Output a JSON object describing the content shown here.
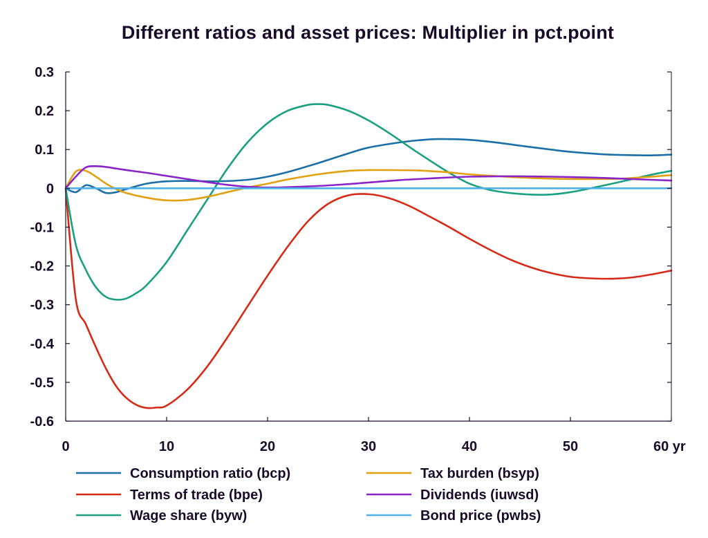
{
  "chart_data": {
    "type": "line",
    "title": "Different ratios and asset prices: Multiplier in pct.point",
    "xlabel": "",
    "ylabel": "",
    "x_unit": "yr",
    "xlim": [
      0,
      60
    ],
    "ylim": [
      -0.6,
      0.3
    ],
    "x_ticks": [
      0,
      10,
      20,
      30,
      40,
      50,
      60
    ],
    "x_tick_labels": [
      "0",
      "10",
      "20",
      "30",
      "40",
      "50",
      "60 yr"
    ],
    "y_ticks": [
      0.3,
      0.2,
      0.1,
      0,
      -0.1,
      -0.2,
      -0.3,
      -0.4,
      -0.5,
      -0.6
    ],
    "y_tick_labels": [
      "0.3",
      "0.2",
      "0.1",
      "0",
      "-0.1",
      "-0.2",
      "-0.3",
      "-0.4",
      "-0.5",
      "-0.6"
    ],
    "grid": false,
    "legend_position": "bottom",
    "series": [
      {
        "name": "Consumption ratio (bcp)",
        "color": "#1a6fa8",
        "x": [
          0,
          1,
          2,
          3,
          4,
          5,
          6,
          8,
          10,
          12,
          15,
          18,
          20,
          22,
          25,
          28,
          30,
          33,
          35,
          37,
          40,
          43,
          45,
          48,
          50,
          53,
          55,
          58,
          60
        ],
        "y": [
          0,
          -0.01,
          0.008,
          0.0,
          -0.012,
          -0.01,
          -0.002,
          0.012,
          0.018,
          0.019,
          0.018,
          0.022,
          0.03,
          0.042,
          0.065,
          0.09,
          0.105,
          0.118,
          0.124,
          0.127,
          0.125,
          0.117,
          0.11,
          0.1,
          0.094,
          0.088,
          0.086,
          0.085,
          0.087
        ]
      },
      {
        "name": "Terms of trade (bpe)",
        "color": "#d62a16",
        "x": [
          0,
          1,
          2,
          3,
          4,
          5,
          6,
          7,
          8,
          9,
          10,
          12,
          14,
          16,
          18,
          20,
          22,
          24,
          26,
          28,
          30,
          32,
          34,
          36,
          38,
          40,
          42,
          44,
          46,
          48,
          50,
          52,
          54,
          56,
          58,
          60
        ],
        "y": [
          0,
          -0.285,
          -0.35,
          -0.41,
          -0.465,
          -0.51,
          -0.54,
          -0.558,
          -0.566,
          -0.565,
          -0.56,
          -0.52,
          -0.46,
          -0.385,
          -0.305,
          -0.225,
          -0.15,
          -0.085,
          -0.04,
          -0.018,
          -0.015,
          -0.025,
          -0.045,
          -0.072,
          -0.1,
          -0.13,
          -0.158,
          -0.183,
          -0.203,
          -0.218,
          -0.228,
          -0.232,
          -0.233,
          -0.23,
          -0.222,
          -0.212
        ]
      },
      {
        "name": "Wage share (byw)",
        "color": "#18a080",
        "x": [
          0,
          1,
          2,
          3,
          4,
          5,
          6,
          7,
          8,
          10,
          12,
          14,
          16,
          18,
          20,
          22,
          24,
          25,
          26,
          28,
          30,
          32,
          35,
          38,
          40,
          42,
          44,
          46,
          48,
          50,
          52,
          55,
          58,
          60
        ],
        "y": [
          0,
          -0.145,
          -0.21,
          -0.255,
          -0.28,
          -0.287,
          -0.284,
          -0.27,
          -0.25,
          -0.19,
          -0.11,
          -0.03,
          0.05,
          0.118,
          0.168,
          0.2,
          0.215,
          0.217,
          0.215,
          0.2,
          0.175,
          0.143,
          0.09,
          0.04,
          0.012,
          -0.004,
          -0.012,
          -0.016,
          -0.016,
          -0.01,
          0.0,
          0.017,
          0.035,
          0.045
        ]
      },
      {
        "name": "Tax burden (bsyp)",
        "color": "#e0a010",
        "x": [
          0,
          1,
          2,
          3,
          4,
          5,
          6,
          8,
          10,
          12,
          14,
          16,
          18,
          20,
          22,
          25,
          28,
          30,
          32,
          35,
          38,
          40,
          43,
          45,
          48,
          50,
          53,
          55,
          58,
          60
        ],
        "y": [
          0,
          0.043,
          0.045,
          0.03,
          0.012,
          -0.002,
          -0.012,
          -0.024,
          -0.031,
          -0.03,
          -0.022,
          -0.01,
          0.002,
          0.012,
          0.023,
          0.036,
          0.045,
          0.047,
          0.047,
          0.046,
          0.041,
          0.036,
          0.031,
          0.028,
          0.025,
          0.024,
          0.024,
          0.025,
          0.03,
          0.034
        ]
      },
      {
        "name": "Dividends (iuwsd)",
        "color": "#8a24c8",
        "x": [
          0,
          1,
          2,
          3,
          4,
          5,
          6,
          8,
          10,
          12,
          14,
          16,
          18,
          20,
          22,
          25,
          28,
          30,
          33,
          35,
          38,
          40,
          43,
          45,
          48,
          50,
          53,
          55,
          58,
          60
        ],
        "y": [
          0,
          0.03,
          0.054,
          0.057,
          0.055,
          0.051,
          0.047,
          0.04,
          0.032,
          0.024,
          0.016,
          0.009,
          0.004,
          0.002,
          0.003,
          0.006,
          0.011,
          0.015,
          0.021,
          0.024,
          0.028,
          0.03,
          0.031,
          0.031,
          0.03,
          0.029,
          0.027,
          0.025,
          0.022,
          0.02
        ]
      },
      {
        "name": "Bond price (pwbs)",
        "color": "#4fb0e8",
        "x": [
          0,
          60
        ],
        "y": [
          0,
          0
        ]
      }
    ]
  }
}
